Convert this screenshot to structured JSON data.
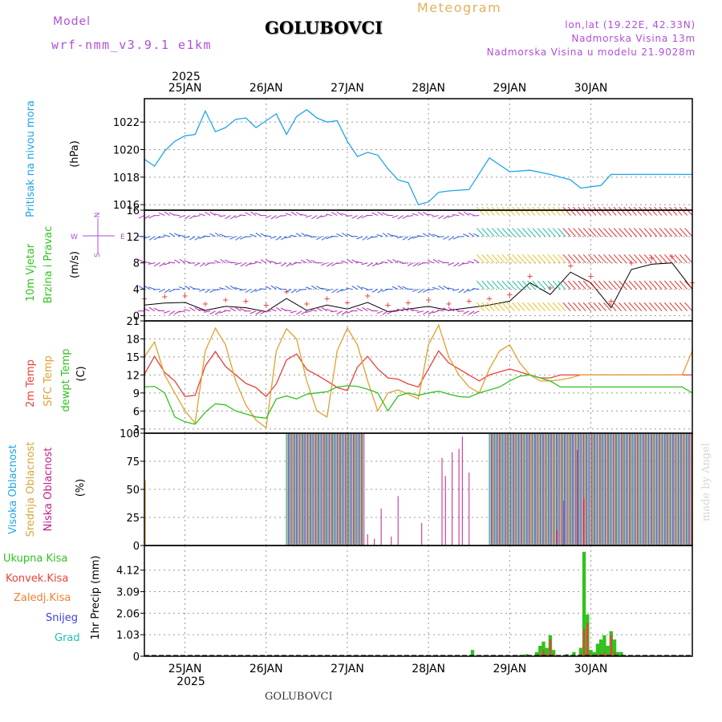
{
  "header": {
    "model_label": "Model",
    "model_name": "wrf-nmm_v3.9.1 e1km",
    "title": "GOLUBOVCI",
    "meteogram_label": "Meteogram",
    "lonlat": "lon,lat (19.22E, 42.33N)",
    "altitude": "Nadmorska Visina 13m",
    "model_altitude": "Nadmorska Visina u modelu 21.9028m"
  },
  "footer": {
    "title": "GOLUBOVCI"
  },
  "watermark": "made by Angel",
  "colors": {
    "pressure": "#1fa5e6",
    "temp2m": "#e8423a",
    "sfc_temp": "#e0a030",
    "dewpoint": "#31c21f",
    "high_cloud": "#1fa5e6",
    "mid_cloud": "#d4a83a",
    "low_cloud": "#c0208a",
    "total_precip": "#31c21f",
    "conv_precip": "#e8423a",
    "frozen_precip": "#f08030",
    "snow": "#4040e0",
    "graupel": "#20c0b0",
    "wind_label": "#31c21f",
    "wind_axis": "#b04fd8"
  },
  "axis": {
    "year_top": "2025",
    "year_bottom": "2025",
    "days": [
      "25JAN",
      "26JAN",
      "27JAN",
      "28JAN",
      "29JAN",
      "30JAN"
    ]
  },
  "panels": {
    "pressure": {
      "label": "Pritisak na nivou mora",
      "unit": "(hPa)"
    },
    "wind": {
      "label_line1": "10m Vjetar",
      "label_line2": "Brzina i Pravac",
      "unit": "(m/s)",
      "compass_n": "N",
      "compass_s": "S",
      "compass_w": "W",
      "compass_e": "E"
    },
    "temp": {
      "label_temp": "2m Temp",
      "label_sfc": "SFC Temp",
      "label_dew": "dewpt Temp",
      "unit": "(C)"
    },
    "cloud": {
      "label_high": "Visoka Oblacnost",
      "label_mid": "Srednja Oblacnost",
      "label_low": "Niska Oblacnost",
      "unit": "(%)"
    },
    "precip": {
      "legend": [
        "Ukupna Kisa",
        "Konvek.Kisa",
        "Zaledj.Kisa",
        "Snijeg",
        "Grad"
      ],
      "unit_label": "1hr Precip (mm)"
    }
  },
  "chart_data": [
    {
      "type": "line",
      "name": "pressure",
      "x_unit": "hours from 24 JAN 12:00",
      "ylim": [
        1015.6,
        1023.7
      ],
      "yticks": [
        "1016",
        "1018",
        "1020",
        "1022"
      ],
      "x": [
        0,
        3,
        6,
        9,
        12,
        15,
        18,
        21,
        24,
        27,
        30,
        33,
        36,
        39,
        42,
        45,
        48,
        51,
        54,
        57,
        60,
        63,
        66,
        69,
        72,
        75,
        78,
        81,
        84,
        87,
        90,
        96,
        102,
        108,
        114,
        120,
        126,
        129,
        132,
        135,
        138,
        141,
        144,
        147,
        150,
        153,
        156,
        159,
        162
      ],
      "series": [
        {
          "name": "",
          "values": [
            1019.3,
            1018.8,
            1019.9,
            1020.6,
            1021.0,
            1021.1,
            1022.8,
            1021.3,
            1021.6,
            1022.2,
            1022.3,
            1021.6,
            1022.1,
            1022.6,
            1021.1,
            1022.4,
            1022.9,
            1022.3,
            1022.0,
            1022.1,
            1020.6,
            1019.5,
            1019.8,
            1019.6,
            1018.6,
            1017.8,
            1017.6,
            1016.0,
            1016.2,
            1016.9,
            1017.0,
            1017.1,
            1019.4,
            1018.4,
            1018.5,
            1018.2,
            1017.8,
            1017.2,
            1017.3,
            1017.4,
            1018.2,
            1018.2,
            1018.2,
            1018.2,
            1018.2,
            1018.2,
            1018.2,
            1018.2,
            1018.2
          ]
        }
      ],
      "grid": true
    },
    {
      "type": "line",
      "name": "wind_speed",
      "ylim": [
        -0.8,
        16
      ],
      "yticks": [
        "0",
        "4",
        "8",
        "12",
        "16"
      ],
      "x": [
        0,
        6,
        12,
        18,
        24,
        30,
        36,
        42,
        48,
        54,
        60,
        66,
        72,
        78,
        84,
        90,
        96,
        102,
        108,
        114,
        120,
        126,
        132,
        138,
        144,
        150,
        156,
        162
      ],
      "series": [
        {
          "name": "",
          "values": [
            1.6,
            1.9,
            2.0,
            0.8,
            1.4,
            1.2,
            0.6,
            2.6,
            0.8,
            1.6,
            1.0,
            2.0,
            0.6,
            1.0,
            1.4,
            0.8,
            1.2,
            1.6,
            2.2,
            5.0,
            3.2,
            6.6,
            5.0,
            1.2,
            7.0,
            7.8,
            8.0,
            4.0
          ]
        }
      ],
      "grid": true
    },
    {
      "type": "line",
      "name": "temperature",
      "ylim": [
        2.3,
        21
      ],
      "yticks": [
        "3",
        "6",
        "9",
        "12",
        "15",
        "18",
        "21"
      ],
      "x": [
        0,
        3,
        6,
        9,
        12,
        15,
        18,
        21,
        24,
        27,
        30,
        33,
        36,
        39,
        42,
        45,
        48,
        51,
        54,
        57,
        60,
        63,
        66,
        69,
        72,
        75,
        78,
        81,
        84,
        87,
        90,
        93,
        96,
        99,
        102,
        105,
        108,
        111,
        114,
        117,
        120,
        123,
        126,
        129,
        132,
        135,
        138,
        141,
        144,
        147,
        150,
        153,
        156,
        159,
        162
      ],
      "series": [
        {
          "name": "2m Temp",
          "values": [
            12.1,
            15.1,
            12.4,
            11.0,
            8.4,
            8.6,
            13.5,
            15.9,
            13.4,
            12.0,
            10.6,
            9.9,
            8.4,
            10.5,
            14.5,
            15.5,
            12.9,
            12.0,
            11.0,
            9.9,
            9.4,
            13.3,
            15.1,
            13.0,
            11.5,
            11.3,
            10.5,
            10.0,
            13.0,
            16.0,
            14.0,
            13.0,
            12.0,
            11.0,
            12.0,
            12.5,
            13.0,
            12.5,
            12.0,
            11.5,
            11.5,
            12.0,
            12.0,
            12.0,
            12.0,
            12.0,
            12.0,
            12.0,
            12.0,
            12.0,
            12.0,
            12.0,
            12.0,
            12.0,
            12.0
          ],
          "values_tail_note": ""
        },
        {
          "name": "SFC Temp",
          "values": [
            15.0,
            17.5,
            12.0,
            9.0,
            6.0,
            4.0,
            16.0,
            19.8,
            17.0,
            11.0,
            7.0,
            4.5,
            3.2,
            16.0,
            19.7,
            18.0,
            11.0,
            6.0,
            5.0,
            16.0,
            19.8,
            17.0,
            11.0,
            6.0,
            9.0,
            9.5,
            8.8,
            8.0,
            17.0,
            20.3,
            15.0,
            12.0,
            10.0,
            9.0,
            13.0,
            16.0,
            17.0,
            14.0,
            12.0,
            11.0,
            11.0,
            11.2,
            11.5,
            12.0,
            12.0,
            12.0,
            12.0,
            12.0,
            12.0,
            12.0,
            12.0,
            12.0,
            12.0,
            12.0,
            16.0
          ]
        },
        {
          "name": "dewpt Temp",
          "values": [
            10.0,
            10.1,
            9.0,
            5.0,
            4.2,
            3.8,
            5.8,
            7.2,
            7.0,
            6.0,
            5.5,
            5.0,
            4.8,
            8.0,
            8.5,
            8.0,
            8.8,
            9.0,
            9.2,
            10.0,
            10.2,
            10.1,
            9.6,
            9.0,
            6.0,
            8.5,
            9.0,
            8.6,
            9.0,
            9.3,
            8.8,
            8.4,
            8.3,
            9.0,
            9.5,
            10.0,
            11.0,
            11.8,
            12.0,
            11.5,
            11.0,
            10.0,
            10.0,
            10.0,
            10.0,
            10.0,
            10.0,
            10.0,
            10.0,
            10.0,
            10.0,
            10.0,
            10.0,
            10.0,
            9.0
          ]
        }
      ],
      "grid": true
    },
    {
      "type": "bar",
      "name": "cloud_cover",
      "ylim": [
        0,
        100
      ],
      "yticks": [
        "0",
        "25",
        "50",
        "75",
        "100"
      ],
      "spans": [
        {
          "from": 0,
          "to": 0.5,
          "mid": 58
        },
        {
          "from": 42,
          "to": 65,
          "high": 100,
          "mid": 100
        },
        {
          "from": 102,
          "to": 162,
          "high": 100,
          "mid": 100
        }
      ],
      "low_spikes": [
        {
          "x": 66,
          "v": 10
        },
        {
          "x": 68,
          "v": 6
        },
        {
          "x": 70,
          "v": 33
        },
        {
          "x": 73,
          "v": 8
        },
        {
          "x": 75,
          "v": 44
        },
        {
          "x": 82,
          "v": 20
        },
        {
          "x": 88,
          "v": 78
        },
        {
          "x": 89,
          "v": 62
        },
        {
          "x": 91,
          "v": 83
        },
        {
          "x": 93,
          "v": 86
        },
        {
          "x": 94,
          "v": 97
        },
        {
          "x": 96,
          "v": 65
        },
        {
          "x": 122,
          "v": 14
        },
        {
          "x": 124,
          "v": 40
        },
        {
          "x": 128,
          "v": 85
        },
        {
          "x": 130,
          "v": 42
        }
      ],
      "grid": true
    },
    {
      "type": "bar",
      "name": "precipitation",
      "ylim": [
        0,
        5.3
      ],
      "yticks": [
        "0",
        "1.03",
        "2.06",
        "3.09",
        "4.12"
      ],
      "bars": [
        {
          "x": 66,
          "total": 0.05,
          "conv": 0
        },
        {
          "x": 97,
          "total": 0.3,
          "conv": 0
        },
        {
          "x": 111,
          "total": 0.05,
          "conv": 0
        },
        {
          "x": 113,
          "total": 0.1,
          "conv": 0
        },
        {
          "x": 116,
          "total": 0.2,
          "conv": 0.05
        },
        {
          "x": 117,
          "total": 0.5,
          "conv": 0.1
        },
        {
          "x": 118,
          "total": 0.7,
          "conv": 0.3
        },
        {
          "x": 119,
          "total": 0.4,
          "conv": 0.1
        },
        {
          "x": 120,
          "total": 1.0,
          "conv": 0.8
        },
        {
          "x": 121,
          "total": 0.3,
          "conv": 0.1
        },
        {
          "x": 125,
          "total": 0.1,
          "conv": 0
        },
        {
          "x": 127,
          "total": 0.2,
          "conv": 0
        },
        {
          "x": 129,
          "total": 0.4,
          "conv": 0.1
        },
        {
          "x": 130,
          "total": 5.0,
          "conv": 1.3
        },
        {
          "x": 131,
          "total": 2.0,
          "conv": 1.6
        },
        {
          "x": 132,
          "total": 0.3,
          "conv": 0.1
        },
        {
          "x": 133,
          "total": 0.2,
          "conv": 0
        },
        {
          "x": 134,
          "total": 0.6,
          "conv": 0.1
        },
        {
          "x": 135,
          "total": 0.8,
          "conv": 0.1
        },
        {
          "x": 136,
          "total": 1.0,
          "conv": 0.2
        },
        {
          "x": 137,
          "total": 0.5,
          "conv": 0.1
        },
        {
          "x": 138,
          "total": 1.2,
          "conv": 1.0
        },
        {
          "x": 139,
          "total": 0.8,
          "conv": 0.2
        },
        {
          "x": 140,
          "total": 0.2,
          "conv": 0
        },
        {
          "x": 141,
          "total": 0.2,
          "conv": 0
        }
      ],
      "grid": true
    }
  ]
}
